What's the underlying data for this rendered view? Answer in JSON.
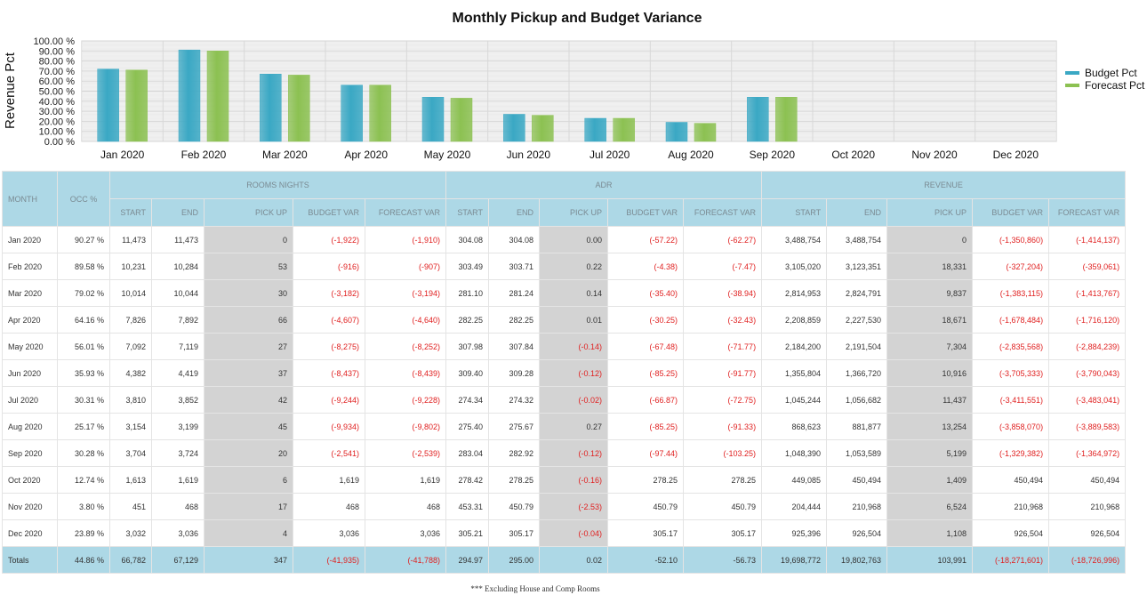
{
  "chart_data": {
    "type": "bar",
    "title": "Monthly Pickup and Budget Variance",
    "ylabel": "Revenue Pct",
    "xlabel": "",
    "ylim": [
      0,
      100
    ],
    "yticks": [
      "0.00 %",
      "10.00 %",
      "20.00 %",
      "30.00 %",
      "40.00 %",
      "50.00 %",
      "60.00 %",
      "70.00 %",
      "80.00 %",
      "90.00 %",
      "100.00 %"
    ],
    "categories": [
      "Jan 2020",
      "Feb 2020",
      "Mar 2020",
      "Apr 2020",
      "May 2020",
      "Jun 2020",
      "Jul 2020",
      "Aug 2020",
      "Sep 2020",
      "Oct 2020",
      "Nov 2020",
      "Dec 2020"
    ],
    "series": [
      {
        "name": "Budget Pct",
        "color": "#3aa8c4",
        "values": [
          72,
          91,
          67,
          56,
          44,
          27,
          23,
          19,
          44,
          null,
          null,
          null
        ]
      },
      {
        "name": "Forecast Pct",
        "color": "#8cc152",
        "values": [
          71,
          90,
          66,
          56,
          43,
          26,
          23,
          18,
          44,
          null,
          null,
          null
        ]
      }
    ],
    "legend": "right",
    "grid": true
  },
  "table": {
    "groups": [
      "ROOMS NIGHTS",
      "ADR",
      "REVENUE"
    ],
    "month_header": "MONTH",
    "occ_header": "OCC %",
    "sub_headers": [
      "START",
      "END",
      "PICK UP",
      "BUDGET VAR",
      "FORECAST VAR"
    ],
    "rows": [
      [
        "Jan 2020",
        "90.27 %",
        "11,473",
        "11,473",
        "0",
        "(-1,922)",
        "(-1,910)",
        "304.08",
        "304.08",
        "0.00",
        "(-57.22)",
        "(-62.27)",
        "3,488,754",
        "3,488,754",
        "0",
        "(-1,350,860)",
        "(-1,414,137)"
      ],
      [
        "Feb 2020",
        "89.58 %",
        "10,231",
        "10,284",
        "53",
        "(-916)",
        "(-907)",
        "303.49",
        "303.71",
        "0.22",
        "(-4.38)",
        "(-7.47)",
        "3,105,020",
        "3,123,351",
        "18,331",
        "(-327,204)",
        "(-359,061)"
      ],
      [
        "Mar 2020",
        "79.02 %",
        "10,014",
        "10,044",
        "30",
        "(-3,182)",
        "(-3,194)",
        "281.10",
        "281.24",
        "0.14",
        "(-35.40)",
        "(-38.94)",
        "2,814,953",
        "2,824,791",
        "9,837",
        "(-1,383,115)",
        "(-1,413,767)"
      ],
      [
        "Apr 2020",
        "64.16 %",
        "7,826",
        "7,892",
        "66",
        "(-4,607)",
        "(-4,640)",
        "282.25",
        "282.25",
        "0.01",
        "(-30.25)",
        "(-32.43)",
        "2,208,859",
        "2,227,530",
        "18,671",
        "(-1,678,484)",
        "(-1,716,120)"
      ],
      [
        "May 2020",
        "56.01 %",
        "7,092",
        "7,119",
        "27",
        "(-8,275)",
        "(-8,252)",
        "307.98",
        "307.84",
        "(-0.14)",
        "(-67.48)",
        "(-71.77)",
        "2,184,200",
        "2,191,504",
        "7,304",
        "(-2,835,568)",
        "(-2,884,239)"
      ],
      [
        "Jun 2020",
        "35.93 %",
        "4,382",
        "4,419",
        "37",
        "(-8,437)",
        "(-8,439)",
        "309.40",
        "309.28",
        "(-0.12)",
        "(-85.25)",
        "(-91.77)",
        "1,355,804",
        "1,366,720",
        "10,916",
        "(-3,705,333)",
        "(-3,790,043)"
      ],
      [
        "Jul 2020",
        "30.31 %",
        "3,810",
        "3,852",
        "42",
        "(-9,244)",
        "(-9,228)",
        "274.34",
        "274.32",
        "(-0.02)",
        "(-66.87)",
        "(-72.75)",
        "1,045,244",
        "1,056,682",
        "11,437",
        "(-3,411,551)",
        "(-3,483,041)"
      ],
      [
        "Aug 2020",
        "25.17 %",
        "3,154",
        "3,199",
        "45",
        "(-9,934)",
        "(-9,802)",
        "275.40",
        "275.67",
        "0.27",
        "(-85.25)",
        "(-91.33)",
        "868,623",
        "881,877",
        "13,254",
        "(-3,858,070)",
        "(-3,889,583)"
      ],
      [
        "Sep 2020",
        "30.28 %",
        "3,704",
        "3,724",
        "20",
        "(-2,541)",
        "(-2,539)",
        "283.04",
        "282.92",
        "(-0.12)",
        "(-97.44)",
        "(-103.25)",
        "1,048,390",
        "1,053,589",
        "5,199",
        "(-1,329,382)",
        "(-1,364,972)"
      ],
      [
        "Oct 2020",
        "12.74 %",
        "1,613",
        "1,619",
        "6",
        "1,619",
        "1,619",
        "278.42",
        "278.25",
        "(-0.16)",
        "278.25",
        "278.25",
        "449,085",
        "450,494",
        "1,409",
        "450,494",
        "450,494"
      ],
      [
        "Nov 2020",
        "3.80 %",
        "451",
        "468",
        "17",
        "468",
        "468",
        "453.31",
        "450.79",
        "(-2.53)",
        "450.79",
        "450.79",
        "204,444",
        "210,968",
        "6,524",
        "210,968",
        "210,968"
      ],
      [
        "Dec 2020",
        "23.89 %",
        "3,032",
        "3,036",
        "4",
        "3,036",
        "3,036",
        "305.21",
        "305.17",
        "(-0.04)",
        "305.17",
        "305.17",
        "925,396",
        "926,504",
        "1,108",
        "926,504",
        "926,504"
      ]
    ],
    "totals": [
      "Totals",
      "44.86 %",
      "66,782",
      "67,129",
      "347",
      "(-41,935)",
      "(-41,788)",
      "294.97",
      "295.00",
      "0.02",
      "-52.10",
      "-56.73",
      "19,698,772",
      "19,802,763",
      "103,991",
      "(-18,271,601)",
      "(-18,726,996)"
    ]
  },
  "footnote": "*** Excluding House and Comp Rooms",
  "colors": {
    "header_bg": "#add8e6",
    "pickup_bg": "#d3d3d3",
    "negative": "#e02020"
  }
}
